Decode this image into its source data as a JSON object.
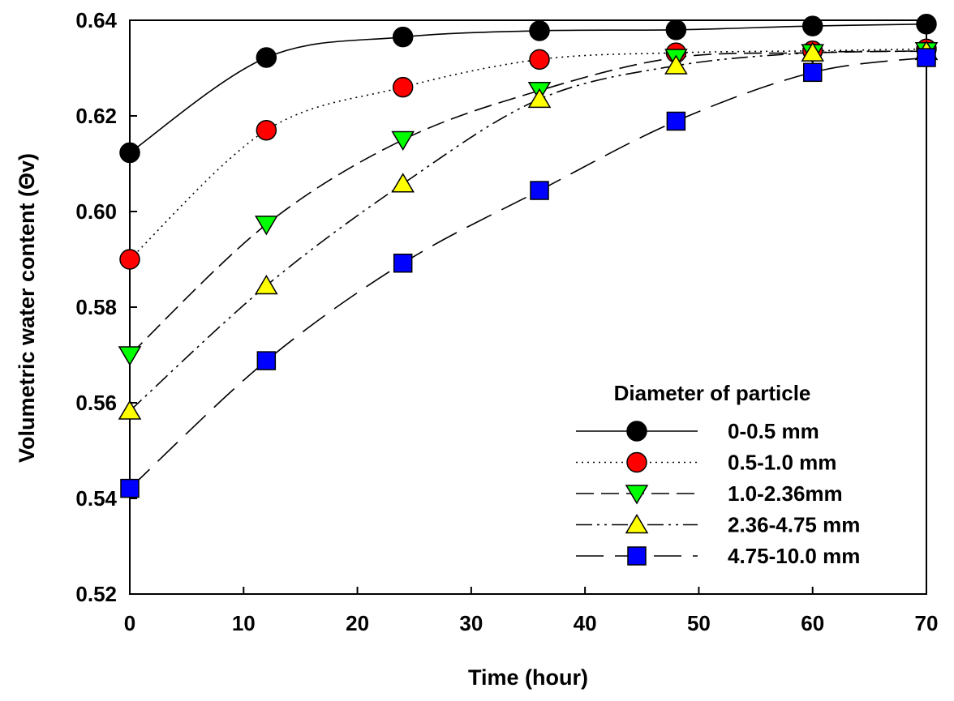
{
  "chart_data": {
    "type": "line",
    "title": "",
    "xlabel": "Time (hour)",
    "ylabel": "Volumetric water content (Θv)",
    "xlim": [
      0,
      70
    ],
    "ylim": [
      0.52,
      0.64
    ],
    "xticks": [
      0,
      10,
      20,
      30,
      40,
      50,
      60,
      70
    ],
    "yticks": [
      0.52,
      0.54,
      0.56,
      0.58,
      0.6,
      0.62,
      0.64
    ],
    "xtick_labels": [
      "0",
      "10",
      "20",
      "30",
      "40",
      "50",
      "60",
      "70"
    ],
    "ytick_labels": [
      "0.52",
      "0.54",
      "0.56",
      "0.58",
      "0.60",
      "0.62",
      "0.64"
    ],
    "grid": false,
    "legend_title": "Diameter of particle",
    "legend_position": "lower-right",
    "x": [
      0,
      12,
      24,
      36,
      48,
      60,
      70
    ],
    "series": [
      {
        "name": "0-0.5 mm",
        "marker": "circle",
        "color": "#000000",
        "dash": "solid",
        "values": [
          0.6123,
          0.6322,
          0.6365,
          0.6378,
          0.638,
          0.6388,
          0.6392
        ]
      },
      {
        "name": "0.5-1.0 mm",
        "marker": "circle",
        "color": "#ff0000",
        "dash": "dotted",
        "values": [
          0.59,
          0.617,
          0.626,
          0.6318,
          0.6332,
          0.6336,
          0.634
        ]
      },
      {
        "name": "1.0-2.36mm",
        "marker": "triangle-down",
        "color": "#00ff00",
        "dash": "dashed",
        "values": [
          0.57,
          0.5973,
          0.615,
          0.6253,
          0.6322,
          0.6332,
          0.6336
        ]
      },
      {
        "name": "2.36-4.75 mm",
        "marker": "triangle-up",
        "color": "#ffff00",
        "dash": "dashdotdot",
        "values": [
          0.5583,
          0.5845,
          0.6058,
          0.6235,
          0.6305,
          0.6332,
          0.6335
        ]
      },
      {
        "name": "4.75-10.0 mm",
        "marker": "square",
        "color": "#0000ff",
        "dash": "longdash",
        "values": [
          0.5421,
          0.5688,
          0.5892,
          0.6044,
          0.6189,
          0.6291,
          0.6322
        ]
      }
    ]
  }
}
